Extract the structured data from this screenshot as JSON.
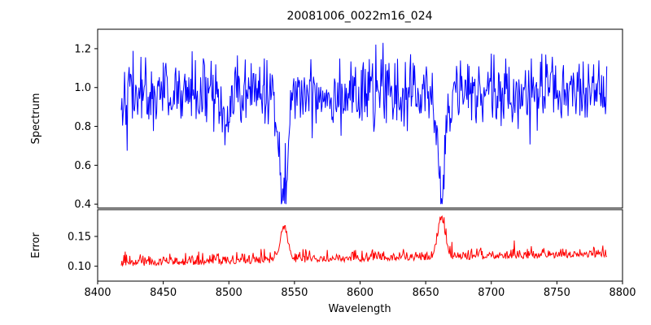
{
  "chart_data": {
    "type": "line",
    "title": "20081006_0022m16_024",
    "xlabel": "Wavelength",
    "background": "#ffffff",
    "axis_color": "#000000",
    "xlim": [
      8400,
      8800
    ],
    "x_data_range": [
      8418,
      8788
    ],
    "sample_step": 0.5,
    "seed": 42,
    "x_ticks": [
      8400,
      8450,
      8500,
      8550,
      8600,
      8650,
      8700,
      8750,
      8800
    ],
    "x_tick_labels": [
      "8400",
      "8450",
      "8500",
      "8550",
      "8600",
      "8650",
      "8700",
      "8750",
      "8800"
    ],
    "panels": [
      {
        "name": "spectrum",
        "ylabel": "Spectrum",
        "color": "#0000ff",
        "ylim": [
          0.38,
          1.3
        ],
        "y_ticks": [
          0.4,
          0.6,
          0.8,
          1.0,
          1.2
        ],
        "y_tick_labels": [
          "0.4",
          "0.6",
          "0.8",
          "1.0",
          "1.2"
        ],
        "baseline": 0.97,
        "noise_sigma": 0.09,
        "value_clip": [
          0.42,
          1.28
        ],
        "absorption_lines": [
          {
            "center": 8498,
            "depth": 0.22,
            "width": 2.5
          },
          {
            "center": 8542,
            "depth": 0.52,
            "width": 3.0
          },
          {
            "center": 8662,
            "depth": 0.5,
            "width": 3.0
          }
        ]
      },
      {
        "name": "error",
        "ylabel": "Error",
        "color": "#ff0000",
        "ylim": [
          0.075,
          0.195
        ],
        "y_ticks": [
          0.1,
          0.15
        ],
        "y_tick_labels": [
          "0.10",
          "0.15"
        ],
        "baseline": 0.1,
        "slope_per_angstrom": 4.2e-05,
        "noise_sigma": 0.009,
        "value_clip": [
          0.085,
          0.19
        ],
        "bumps": [
          {
            "center": 8542,
            "height": 0.055,
            "width": 3.0
          },
          {
            "center": 8662,
            "height": 0.065,
            "width": 3.0
          }
        ]
      }
    ]
  }
}
